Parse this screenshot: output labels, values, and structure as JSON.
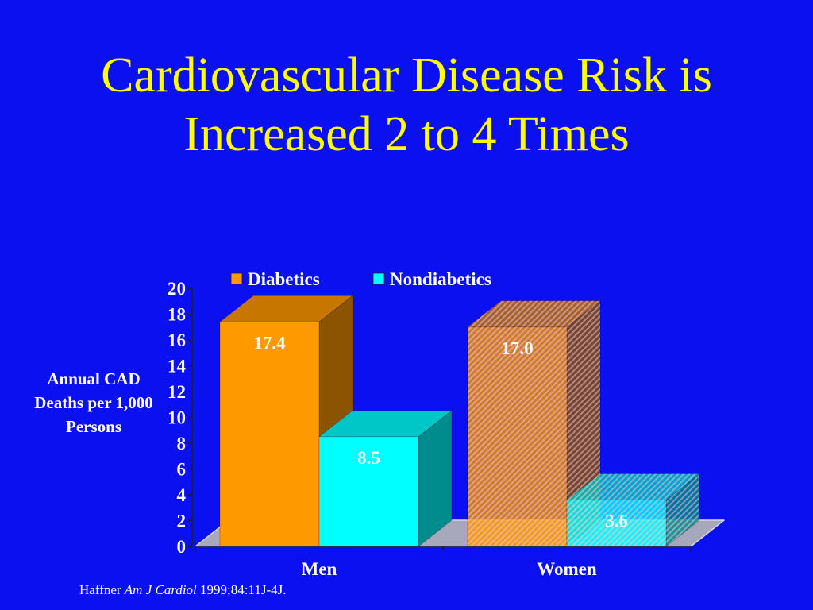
{
  "slide": {
    "background": "#0a10f0",
    "title_color": "#ffff00",
    "text_color": "#ffffff",
    "citation": {
      "author": "Haffner",
      "journal": "Am J Cardiol",
      "details": "1999;84:11J-4J."
    }
  },
  "chart_data": {
    "type": "bar",
    "title": "Cardiovascular Disease Risk is Increased 2 to 4 Times",
    "categories": [
      "Men",
      "Women"
    ],
    "series": [
      {
        "name": "Diabetics",
        "values": [
          17.4,
          17.0
        ],
        "labels": [
          "17.4",
          "17.0"
        ],
        "color": "#ff9900"
      },
      {
        "name": "Nondiabetics",
        "values": [
          8.5,
          3.6
        ],
        "labels": [
          "8.5",
          "3.6"
        ],
        "color": "#00ffff"
      }
    ],
    "ylabel": "Annual CAD Deaths per 1,000 Persons",
    "ylim": [
      0,
      20
    ],
    "yticks": [
      0,
      2,
      4,
      6,
      8,
      10,
      12,
      14,
      16,
      18,
      20
    ],
    "grid": false,
    "legend": "top"
  }
}
